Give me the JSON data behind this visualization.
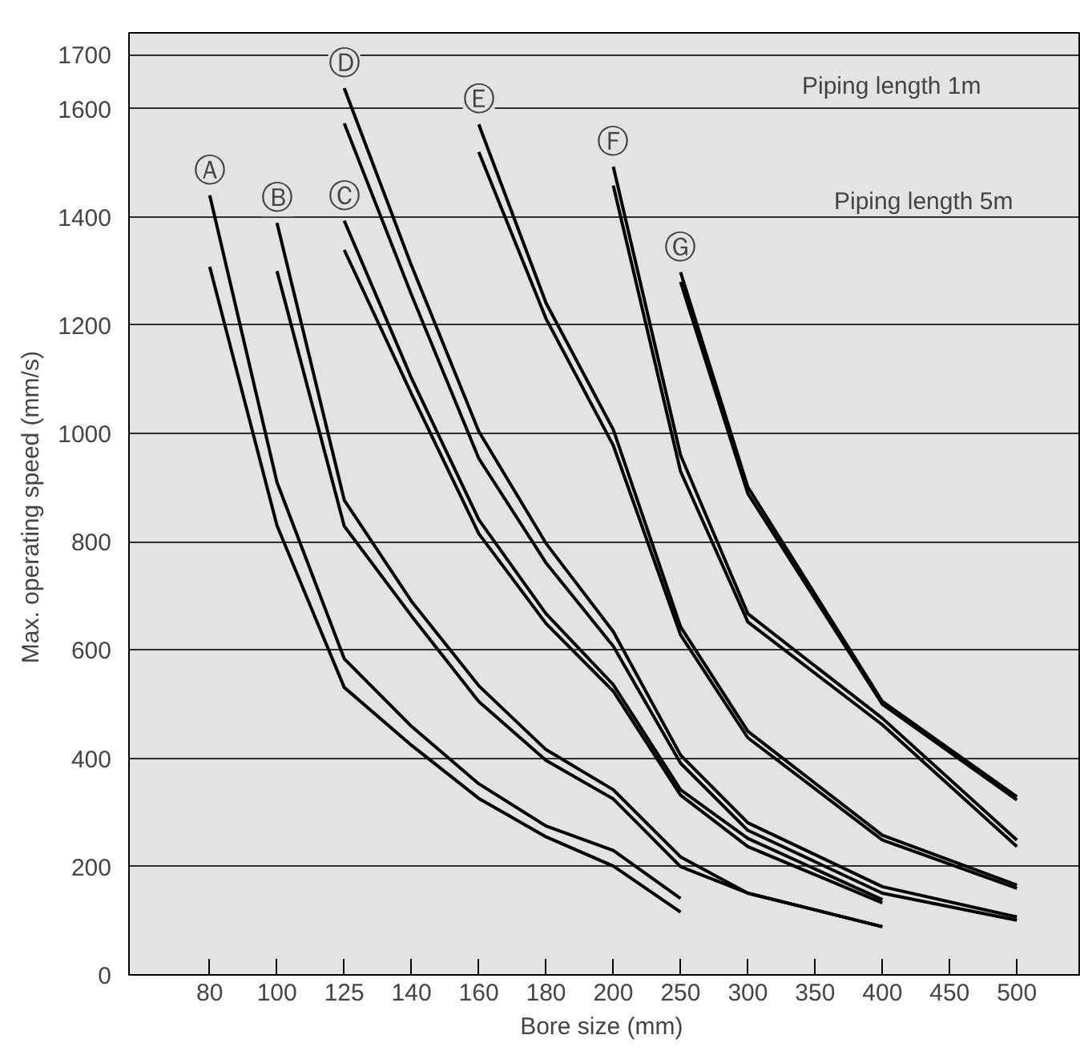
{
  "chart_data": {
    "type": "line",
    "xlabel": "Bore size  (mm)",
    "ylabel": "Max. operating speed  (mm/s)",
    "categories": [
      "80",
      "100",
      "125",
      "140",
      "160",
      "180",
      "200",
      "250",
      "300",
      "350",
      "400",
      "450",
      "500"
    ],
    "ylim": [
      0,
      1740
    ],
    "yticks": [
      0,
      200,
      400,
      600,
      800,
      1000,
      1200,
      1400,
      1600,
      1700
    ],
    "grid": "y",
    "series": [
      {
        "name": "Ⓐ",
        "color": "#000000",
        "values": [
          1440,
          910,
          584,
          459,
          353,
          275,
          230,
          141,
          null,
          null,
          null,
          null,
          null
        ]
      },
      {
        "color": "#000000",
        "values": [
          1308,
          830,
          531,
          424,
          326,
          255,
          201,
          116,
          null,
          null,
          null,
          null,
          null
        ]
      },
      {
        "name": "Ⓑ",
        "color": "#000000",
        "values": [
          null,
          1389,
          877,
          690,
          534,
          416,
          342,
          218,
          151,
          null,
          89,
          null,
          null
        ]
      },
      {
        "color": "#000000",
        "values": [
          null,
          1300,
          829,
          663,
          505,
          396,
          325,
          200,
          151,
          null,
          89,
          null,
          null
        ]
      },
      {
        "name": "Ⓒ",
        "color": "#000000",
        "values": [
          null,
          null,
          1393,
          1102,
          841,
          667,
          536,
          342,
          252,
          null,
          139,
          null,
          null
        ]
      },
      {
        "color": "#000000",
        "values": [
          null,
          null,
          1339,
          1073,
          815,
          649,
          524,
          332,
          237,
          null,
          133,
          null,
          null
        ]
      },
      {
        "name": "Ⓓ",
        "color": "#000000",
        "values": [
          null,
          null,
          1638,
          1310,
          1004,
          797,
          634,
          406,
          281,
          null,
          163,
          null,
          107
        ]
      },
      {
        "color": "#000000",
        "values": [
          null,
          null,
          1573,
          1256,
          954,
          761,
          607,
          391,
          267,
          null,
          151,
          null,
          101
        ]
      },
      {
        "name": "Ⓔ",
        "color": "#000000",
        "values": [
          null,
          null,
          null,
          null,
          1571,
          1241,
          1007,
          643,
          450,
          null,
          258,
          null,
          166
        ]
      },
      {
        "color": "#000000",
        "values": [
          null,
          null,
          null,
          null,
          1520,
          1212,
          978,
          628,
          438,
          null,
          249,
          null,
          160
        ]
      },
      {
        "name": "Ⓕ",
        "color": "#000000",
        "values": [
          null,
          null,
          null,
          null,
          null,
          null,
          1493,
          960,
          667,
          null,
          474,
          null,
          249
        ]
      },
      {
        "color": "#000000",
        "values": [
          null,
          null,
          null,
          null,
          null,
          null,
          1458,
          930,
          652,
          null,
          462,
          null,
          237
        ]
      },
      {
        "name": "Ⓖ",
        "color": "#000000",
        "values": [
          null,
          null,
          null,
          null,
          null,
          null,
          null,
          1298,
          901,
          null,
          505,
          null,
          329
        ]
      },
      {
        "color": "#000000",
        "values": [
          null,
          null,
          null,
          null,
          null,
          null,
          null,
          1280,
          889,
          null,
          500,
          null,
          323
        ]
      }
    ],
    "annotations": [
      "Piping length 1m",
      "Piping length 5m"
    ]
  }
}
